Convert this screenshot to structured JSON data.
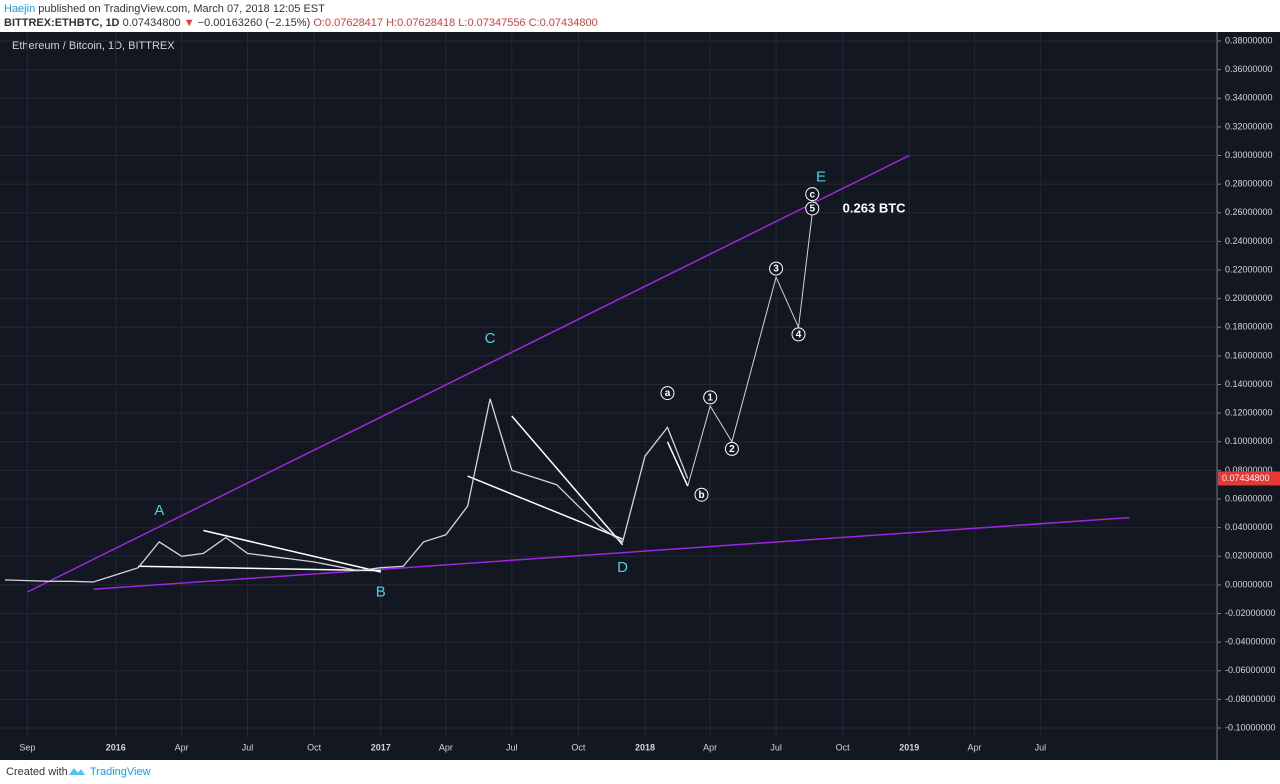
{
  "header": {
    "author": "Haejin",
    "published": "published on TradingView.com, March 07, 2018 12:05 EST",
    "symbol": "BITTREX:ETHBTC, 1D",
    "price": "0.07434800",
    "arrow": "▼",
    "change": "−0.00163260 (−2.15%)",
    "ohlc": "O:0.07628417 H:0.07628418 L:0.07347556 C:0.07434800"
  },
  "footer": {
    "created": "Created with",
    "brand": "TradingView"
  },
  "chart_data": {
    "type": "line",
    "title": "Ethereum / Bitcoin, 1D, BITTREX",
    "color": "#d1d4dc",
    "grid": true,
    "x": [
      "2015-08",
      "2015-09",
      "2015-10",
      "2015-11",
      "2015-12",
      "2016-01",
      "2016-02",
      "2016-03",
      "2016-04",
      "2016-05",
      "2016-06",
      "2016-07",
      "2016-08",
      "2016-09",
      "2016-10",
      "2016-11",
      "2016-12",
      "2017-01",
      "2017-02",
      "2017-03",
      "2017-04",
      "2017-05",
      "2017-06",
      "2017-07",
      "2017-08",
      "2017-09",
      "2017-10",
      "2017-11",
      "2017-12",
      "2018-01",
      "2018-02",
      "2018-03"
    ],
    "values": [
      0.0035,
      0.003,
      0.0025,
      0.0025,
      0.002,
      0.007,
      0.012,
      0.03,
      0.02,
      0.022,
      0.033,
      0.022,
      0.02,
      0.018,
      0.016,
      0.013,
      0.01,
      0.012,
      0.013,
      0.03,
      0.035,
      0.055,
      0.13,
      0.08,
      0.075,
      0.07,
      0.055,
      0.04,
      0.03,
      0.09,
      0.11,
      0.074348
    ],
    "last": {
      "value": 0.074348,
      "label": "0.07434800"
    },
    "projection": {
      "color": "#d1d4dc",
      "x": [
        "2018-03",
        "2018-04",
        "2018-05",
        "2018-07",
        "2018-08",
        "2018-08-20"
      ],
      "values": [
        0.069,
        0.125,
        0.1,
        0.215,
        0.18,
        0.26
      ]
    },
    "trendlines": [
      {
        "color": "#9c27e0",
        "x": [
          "2015-09",
          "2019-01"
        ],
        "values": [
          -0.005,
          0.3
        ]
      },
      {
        "color": "#9c27e0",
        "x": [
          "2015-12",
          "2019-11"
        ],
        "values": [
          -0.003,
          0.047
        ]
      },
      {
        "color": "#ffffff",
        "x": [
          "2016-02",
          "2017-01"
        ],
        "values": [
          0.013,
          0.01
        ]
      },
      {
        "color": "#ffffff",
        "x": [
          "2016-05",
          "2017-01"
        ],
        "values": [
          0.038,
          0.009
        ]
      },
      {
        "color": "#ffffff",
        "x": [
          "2017-05",
          "2017-12"
        ],
        "values": [
          0.076,
          0.032
        ]
      },
      {
        "color": "#ffffff",
        "x": [
          "2017-07",
          "2017-12"
        ],
        "values": [
          0.118,
          0.028
        ]
      },
      {
        "color": "#ffffff",
        "x": [
          "2018-02",
          "2018-03"
        ],
        "values": [
          0.1,
          0.069
        ]
      }
    ],
    "annotations": [
      {
        "text": "A",
        "x": "2016-03",
        "y": 0.052,
        "color": "#4dd0e1"
      },
      {
        "text": "B",
        "x": "2017-01",
        "y": -0.005,
        "color": "#4dd0e1"
      },
      {
        "text": "C",
        "x": "2017-06",
        "y": 0.172,
        "color": "#4dd0e1"
      },
      {
        "text": "D",
        "x": "2017-12",
        "y": 0.012,
        "color": "#4dd0e1"
      },
      {
        "text": "E",
        "x": "2018-09",
        "y": 0.285,
        "color": "#4dd0e1"
      },
      {
        "text": "a",
        "x": "2018-02",
        "y": 0.134,
        "color": "#ffffff",
        "circled": true
      },
      {
        "text": "b",
        "x": "2018-03-20",
        "y": 0.063,
        "color": "#ffffff",
        "circled": true
      },
      {
        "text": "1",
        "x": "2018-04",
        "y": 0.131,
        "color": "#ffffff",
        "circled": true
      },
      {
        "text": "2",
        "x": "2018-05",
        "y": 0.095,
        "color": "#ffffff",
        "circled": true
      },
      {
        "text": "3",
        "x": "2018-07",
        "y": 0.221,
        "color": "#ffffff",
        "circled": true
      },
      {
        "text": "4",
        "x": "2018-08",
        "y": 0.175,
        "color": "#ffffff",
        "circled": true
      },
      {
        "text": "5",
        "x": "2018-08-20",
        "y": 0.263,
        "color": "#ffffff",
        "circled": true
      },
      {
        "text": "c",
        "x": "2018-08-20",
        "y": 0.273,
        "color": "#ffffff",
        "circled": true
      },
      {
        "text": "0.263 BTC",
        "x": "2018-10",
        "y": 0.263,
        "color": "#ffffff",
        "bold": true
      }
    ],
    "xlim": [
      "2015-08",
      "2020-03"
    ],
    "xticks": [
      {
        "value": "2015-09",
        "label": "Sep"
      },
      {
        "value": "2016-01",
        "label": "2016"
      },
      {
        "value": "2016-04",
        "label": "Apr"
      },
      {
        "value": "2016-07",
        "label": "Jul"
      },
      {
        "value": "2016-10",
        "label": "Oct"
      },
      {
        "value": "2017-01",
        "label": "2017"
      },
      {
        "value": "2017-04",
        "label": "Apr"
      },
      {
        "value": "2017-07",
        "label": "Jul"
      },
      {
        "value": "2017-10",
        "label": "Oct"
      },
      {
        "value": "2018-01",
        "label": "2018"
      },
      {
        "value": "2018-04",
        "label": "Apr"
      },
      {
        "value": "2018-07",
        "label": "Jul"
      },
      {
        "value": "2018-10",
        "label": "Oct"
      },
      {
        "value": "2019-01",
        "label": "2019"
      },
      {
        "value": "2019-04",
        "label": "Apr"
      },
      {
        "value": "2019-07",
        "label": "Jul"
      }
    ],
    "ylim": [
      -0.1,
      0.38
    ],
    "yticks": [
      {
        "value": 0.38,
        "label": "0.38000000"
      },
      {
        "value": 0.36,
        "label": "0.36000000"
      },
      {
        "value": 0.34,
        "label": "0.34000000"
      },
      {
        "value": 0.32,
        "label": "0.32000000"
      },
      {
        "value": 0.3,
        "label": "0.30000000"
      },
      {
        "value": 0.28,
        "label": "0.28000000"
      },
      {
        "value": 0.26,
        "label": "0.26000000"
      },
      {
        "value": 0.24,
        "label": "0.24000000"
      },
      {
        "value": 0.22,
        "label": "0.22000000"
      },
      {
        "value": 0.2,
        "label": "0.20000000"
      },
      {
        "value": 0.18,
        "label": "0.18000000"
      },
      {
        "value": 0.16,
        "label": "0.16000000"
      },
      {
        "value": 0.14,
        "label": "0.14000000"
      },
      {
        "value": 0.12,
        "label": "0.12000000"
      },
      {
        "value": 0.1,
        "label": "0.10000000"
      },
      {
        "value": 0.08,
        "label": "0.08000000"
      },
      {
        "value": 0.06,
        "label": "0.06000000"
      },
      {
        "value": 0.04,
        "label": "0.04000000"
      },
      {
        "value": 0.02,
        "label": "0.02000000"
      },
      {
        "value": 0,
        "label": "0.00000000"
      },
      {
        "value": -0.02,
        "label": "-0.02000000"
      },
      {
        "value": -0.04,
        "label": "-0.04000000"
      },
      {
        "value": -0.06,
        "label": "-0.06000000"
      },
      {
        "value": -0.08,
        "label": "-0.08000000"
      },
      {
        "value": -0.1,
        "label": "-0.10000000"
      }
    ]
  }
}
